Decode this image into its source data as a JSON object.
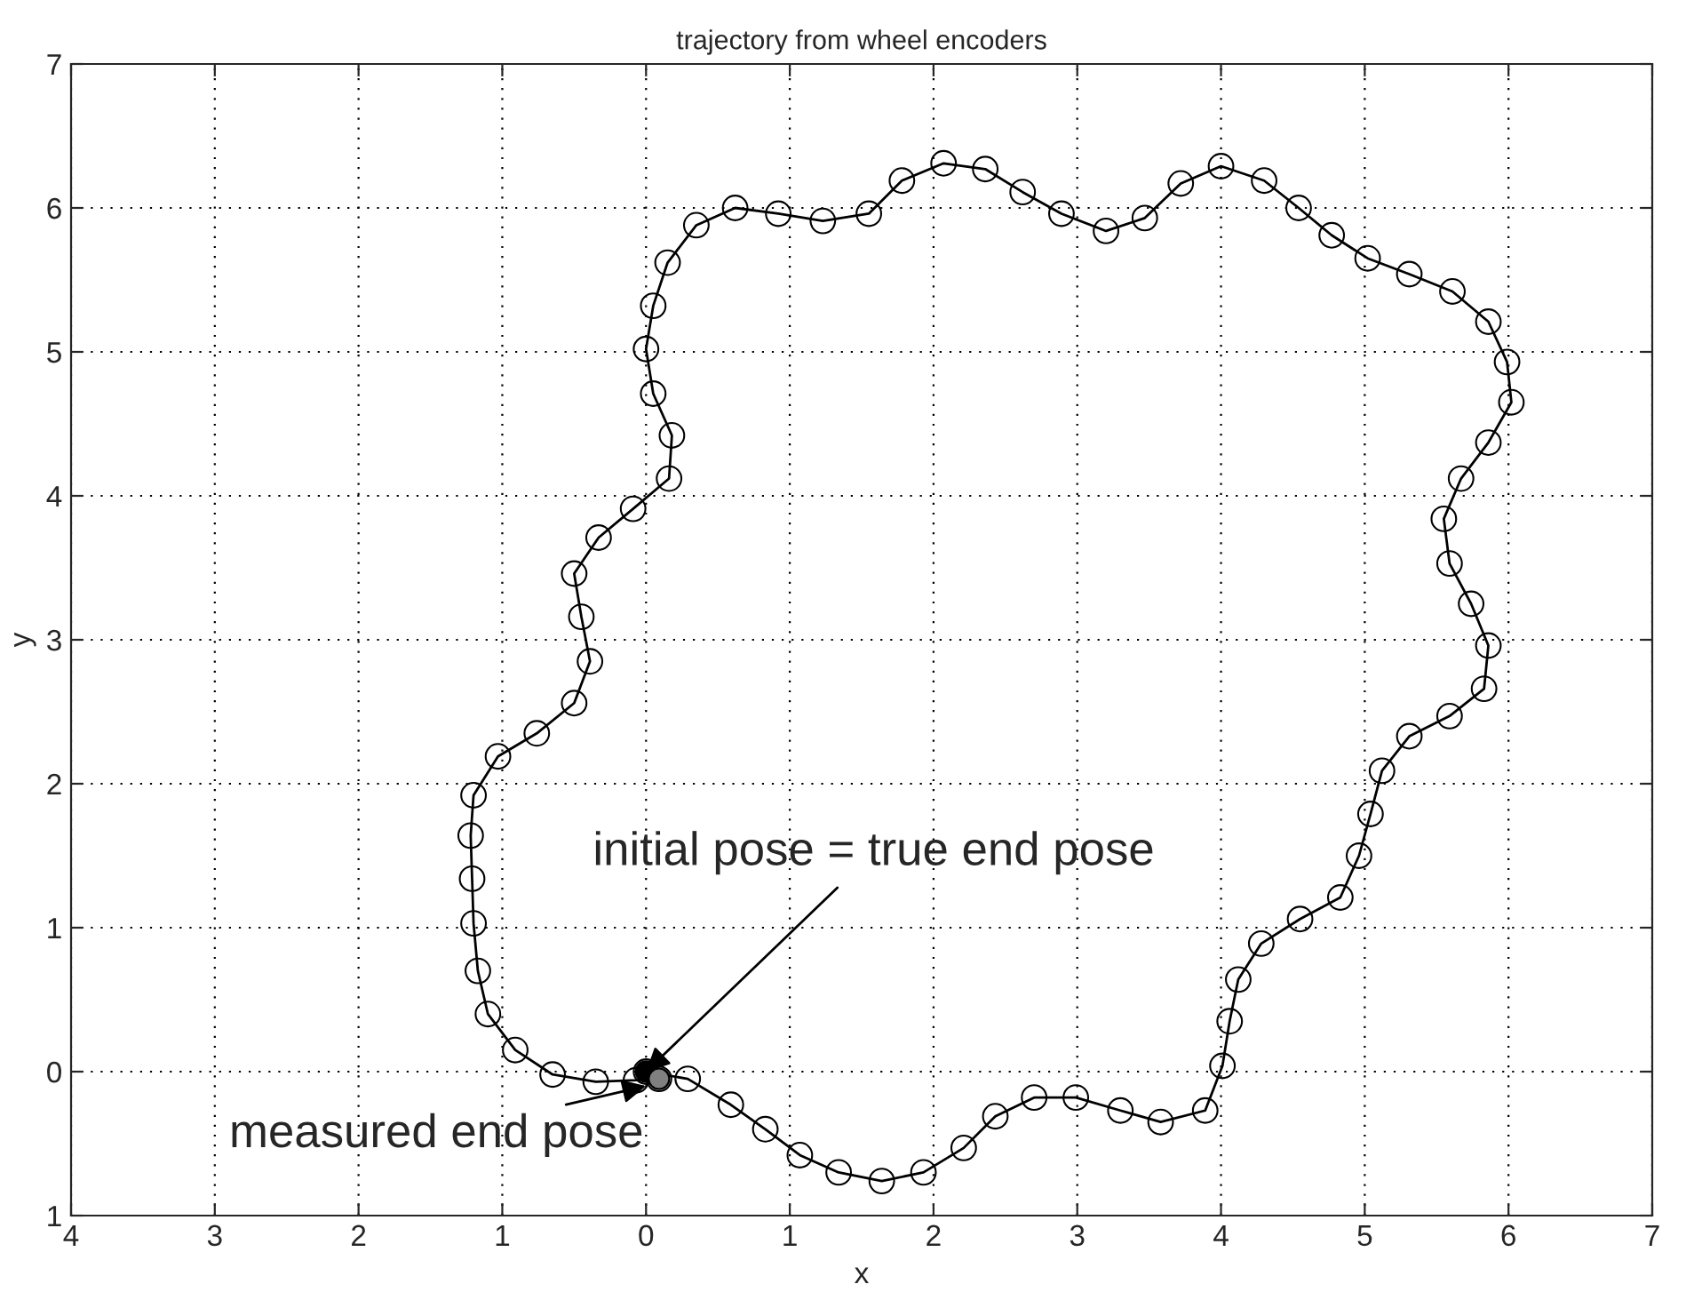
{
  "chart_data": {
    "type": "line",
    "title": "trajectory from wheel encoders",
    "xlabel": "x",
    "ylabel": "y",
    "xlim": [
      -4,
      7
    ],
    "ylim": [
      -1,
      7
    ],
    "xticks": [
      {
        "value": -4,
        "label": "4"
      },
      {
        "value": -3,
        "label": "3"
      },
      {
        "value": -2,
        "label": "2"
      },
      {
        "value": -1,
        "label": "1"
      },
      0,
      1,
      2,
      3,
      4,
      5,
      6,
      7
    ],
    "yticks": [
      {
        "value": -1,
        "label": "1"
      },
      0,
      1,
      2,
      3,
      4,
      5,
      6,
      7
    ],
    "grid": true,
    "marker": "circle",
    "line_style": "solid",
    "series": [
      {
        "color": "#000000",
        "x": [
          0,
          0.29,
          0.59,
          0.83,
          1.07,
          1.34,
          1.64,
          1.93,
          2.21,
          2.43,
          2.7,
          2.99,
          3.3,
          3.58,
          3.89,
          4.01,
          4.06,
          4.12,
          4.28,
          4.55,
          4.83,
          4.96,
          5.04,
          5.12,
          5.31,
          5.59,
          5.83,
          5.86,
          5.74,
          5.59,
          5.55,
          5.67,
          5.86,
          6.02,
          5.99,
          5.86,
          5.61,
          5.31,
          5.02,
          4.77,
          4.54,
          4.3,
          4.0,
          3.72,
          3.47,
          3.2,
          2.89,
          2.62,
          2.36,
          2.07,
          1.78,
          1.55,
          1.23,
          0.92,
          0.62,
          0.35,
          0.15,
          0.05,
          0.0,
          0.05,
          0.18,
          0.16,
          -0.09,
          -0.33,
          -0.5,
          -0.45,
          -0.39,
          -0.5,
          -0.76,
          -1.03,
          -1.2,
          -1.22,
          -1.21,
          -1.2,
          -1.17,
          -1.1,
          -0.91,
          -0.65,
          -0.35,
          -0.07,
          0.09
        ],
        "values": [
          0,
          -0.05,
          -0.23,
          -0.4,
          -0.58,
          -0.7,
          -0.76,
          -0.7,
          -0.53,
          -0.31,
          -0.18,
          -0.18,
          -0.27,
          -0.35,
          -0.27,
          0.04,
          0.35,
          0.64,
          0.89,
          1.06,
          1.21,
          1.5,
          1.79,
          2.09,
          2.33,
          2.47,
          2.66,
          2.96,
          3.25,
          3.53,
          3.84,
          4.12,
          4.37,
          4.65,
          4.93,
          5.21,
          5.42,
          5.54,
          5.65,
          5.81,
          6.0,
          6.19,
          6.29,
          6.17,
          5.93,
          5.84,
          5.96,
          6.11,
          6.27,
          6.31,
          6.19,
          5.96,
          5.91,
          5.96,
          6.0,
          5.88,
          5.62,
          5.32,
          5.02,
          4.71,
          4.42,
          4.12,
          3.91,
          3.71,
          3.46,
          3.16,
          2.85,
          2.56,
          2.35,
          2.19,
          1.92,
          1.64,
          1.34,
          1.03,
          0.7,
          0.4,
          0.15,
          -0.02,
          -0.07,
          -0.06,
          -0.05
        ]
      },
      {
        "type": "scatter",
        "color": "#000000",
        "x": [
          0
        ],
        "values": [
          0
        ]
      },
      {
        "type": "scatter",
        "color": "#808080",
        "x": [
          0.09
        ],
        "values": [
          -0.05
        ]
      }
    ],
    "annotations": [
      {
        "text": "initial pose = true end pose",
        "x": 0,
        "y": 0
      },
      {
        "text": "measured end pose",
        "x": 0,
        "y": -0.1
      }
    ]
  }
}
